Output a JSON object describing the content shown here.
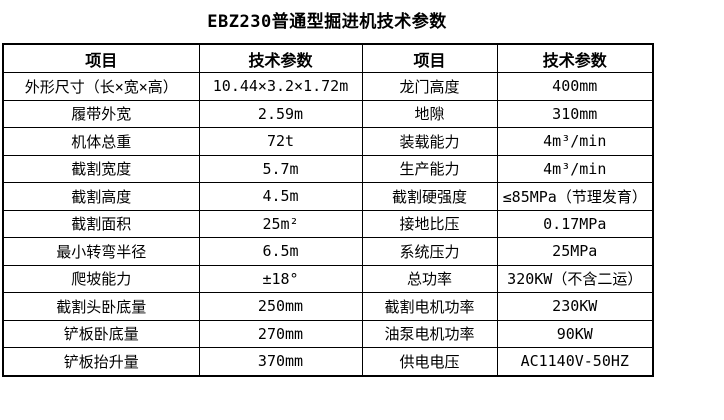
{
  "title": "EBZ230普通型掘进机技术参数",
  "table": {
    "headers": [
      "项目",
      "技术参数",
      "项目",
      "技术参数"
    ],
    "rows": [
      {
        "item_left": "外形尺寸（长×宽×高）",
        "value_left": "10.44×3.2×1.72m",
        "item_right": "龙门高度",
        "value_right": "400mm"
      },
      {
        "item_left": "履带外宽",
        "value_left": "2.59m",
        "item_right": "地隙",
        "value_right": "310mm"
      },
      {
        "item_left": "机体总重",
        "value_left": "72t",
        "item_right": "装载能力",
        "value_right": "4m³/min"
      },
      {
        "item_left": "截割宽度",
        "value_left": "5.7m",
        "item_right": "生产能力",
        "value_right": "4m³/min"
      },
      {
        "item_left": "截割高度",
        "value_left": "4.5m",
        "item_right": "截割硬强度",
        "value_right": "≤85MPa（节理发育）"
      },
      {
        "item_left": "截割面积",
        "value_left": "25m²",
        "item_right": "接地比压",
        "value_right": "0.17MPa"
      },
      {
        "item_left": "最小转弯半径",
        "value_left": "6.5m",
        "item_right": "系统压力",
        "value_right": "25MPa"
      },
      {
        "item_left": "爬坡能力",
        "value_left": "±18°",
        "item_right": "总功率",
        "value_right": "320KW（不含二运）"
      },
      {
        "item_left": "截割头卧底量",
        "value_left": "250mm",
        "item_right": "截割电机功率",
        "value_right": "230KW"
      },
      {
        "item_left": "铲板卧底量",
        "value_left": "270mm",
        "item_right": "油泵电机功率",
        "value_right": "90KW"
      },
      {
        "item_left": "铲板抬升量",
        "value_left": "370mm",
        "item_right": "供电电压",
        "value_right": "AC1140V-50HZ"
      }
    ]
  },
  "colors": {
    "background": "#ffffff",
    "border": "#000000",
    "text": "#000000"
  }
}
